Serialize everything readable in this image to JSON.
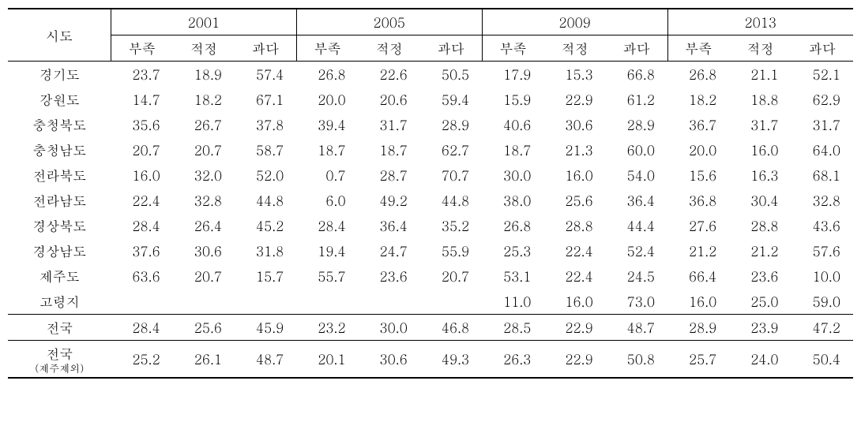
{
  "header": {
    "region_label": "시도",
    "years": [
      "2001",
      "2005",
      "2009",
      "2013"
    ],
    "sub_cols": [
      "부족",
      "적정",
      "과다"
    ]
  },
  "rows": [
    {
      "region": "경기도",
      "v": [
        "23.7",
        "18.9",
        "57.4",
        "26.8",
        "22.6",
        "50.5",
        "17.9",
        "15.3",
        "66.8",
        "26.8",
        "21.1",
        "52.1"
      ]
    },
    {
      "region": "강원도",
      "v": [
        "14.7",
        "18.2",
        "67.1",
        "20.0",
        "20.6",
        "59.4",
        "15.9",
        "22.9",
        "61.2",
        "18.2",
        "18.8",
        "62.9"
      ]
    },
    {
      "region": "충청북도",
      "v": [
        "35.6",
        "26.7",
        "37.8",
        "39.4",
        "31.7",
        "28.9",
        "40.6",
        "30.6",
        "28.9",
        "36.7",
        "31.7",
        "31.7"
      ]
    },
    {
      "region": "충청남도",
      "v": [
        "20.7",
        "20.7",
        "58.7",
        "18.7",
        "18.7",
        "62.7",
        "18.7",
        "21.3",
        "60.0",
        "20.0",
        "16.0",
        "64.0"
      ]
    },
    {
      "region": "전라북도",
      "v": [
        "16.0",
        "32.0",
        "52.0",
        "0.7",
        "28.7",
        "70.7",
        "30.0",
        "16.0",
        "54.0",
        "15.6",
        "16.3",
        "68.1"
      ]
    },
    {
      "region": "전라남도",
      "v": [
        "22.4",
        "32.8",
        "44.8",
        "6.0",
        "49.2",
        "44.8",
        "38.0",
        "25.6",
        "36.4",
        "36.8",
        "30.4",
        "32.8"
      ]
    },
    {
      "region": "경상북도",
      "v": [
        "28.4",
        "26.4",
        "45.2",
        "28.4",
        "36.4",
        "35.2",
        "26.8",
        "28.8",
        "44.4",
        "27.6",
        "28.8",
        "43.6"
      ]
    },
    {
      "region": "경상남도",
      "v": [
        "37.6",
        "30.6",
        "31.8",
        "19.4",
        "24.7",
        "55.9",
        "25.3",
        "22.4",
        "52.4",
        "21.2",
        "21.2",
        "57.6"
      ]
    },
    {
      "region": "제주도",
      "v": [
        "63.6",
        "20.7",
        "15.7",
        "55.7",
        "23.6",
        "20.7",
        "53.1",
        "22.4",
        "24.5",
        "66.4",
        "23.6",
        "10.0"
      ]
    },
    {
      "region": "고령지",
      "v": [
        "",
        "",
        "",
        "",
        "",
        "",
        "11.0",
        "16.0",
        "73.0",
        "16.0",
        "25.0",
        "59.0"
      ]
    }
  ],
  "totals": [
    {
      "region": "전국",
      "v": [
        "28.4",
        "25.6",
        "45.9",
        "23.2",
        "30.0",
        "46.8",
        "28.5",
        "22.9",
        "48.7",
        "28.9",
        "23.9",
        "47.2"
      ]
    },
    {
      "region_main": "전국",
      "region_sub": "(제주제외)",
      "v": [
        "25.2",
        "26.1",
        "48.7",
        "20.1",
        "30.6",
        "49.3",
        "26.3",
        "22.9",
        "50.8",
        "25.7",
        "24.0",
        "50.4"
      ]
    }
  ]
}
